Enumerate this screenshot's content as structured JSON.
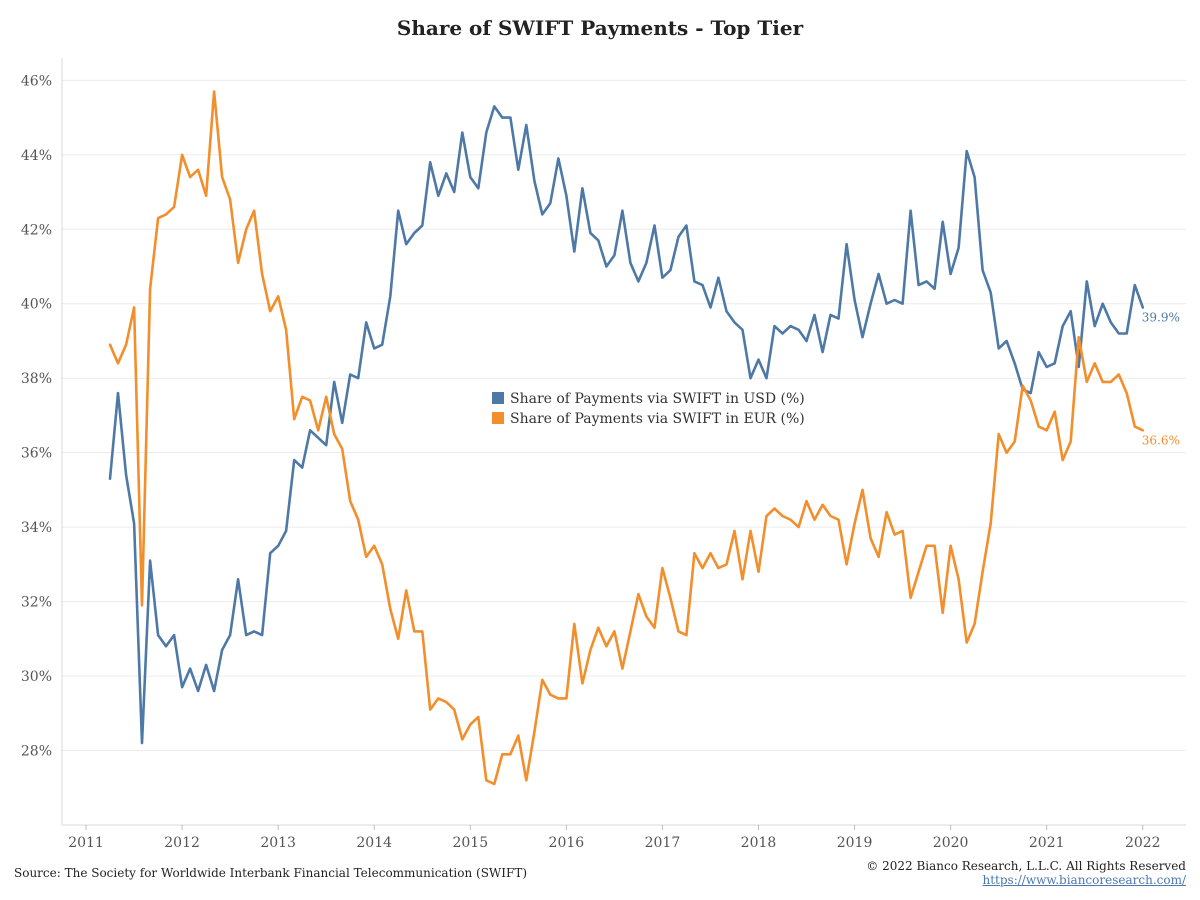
{
  "page": {
    "title": "Share of SWIFT Payments - Top Tier",
    "source": "Source: The Society for Worldwide Interbank Financial Telecommunication (SWIFT)",
    "copyright": "© 2022 Bianco Research, L.L.C. All Rights Reserved",
    "url": "https://www.biancoresearch.com/"
  },
  "chart_data": {
    "type": "line",
    "title": "Share of SWIFT Payments - Top Tier",
    "xlabel": "",
    "ylabel": "",
    "x_unit": "year",
    "xlim": [
      2010.75,
      2022.45
    ],
    "ylim": [
      26.0,
      46.6
    ],
    "x_ticks": [
      2011,
      2012,
      2013,
      2014,
      2015,
      2016,
      2017,
      2018,
      2019,
      2020,
      2021,
      2022
    ],
    "x_tick_labels": [
      "2011",
      "2012",
      "2013",
      "2014",
      "2015",
      "2016",
      "2017",
      "2018",
      "2019",
      "2020",
      "2021",
      "2022"
    ],
    "y_ticks": [
      28,
      30,
      32,
      34,
      36,
      38,
      40,
      42,
      44,
      46
    ],
    "y_tick_labels": [
      "28%",
      "30%",
      "32%",
      "34%",
      "36%",
      "38%",
      "40%",
      "42%",
      "44%",
      "46%"
    ],
    "grid": true,
    "legend_position": "center",
    "x": [
      2011.25,
      2011.333,
      2011.417,
      2011.5,
      2011.583,
      2011.667,
      2011.75,
      2011.833,
      2011.917,
      2012.0,
      2012.083,
      2012.167,
      2012.25,
      2012.333,
      2012.417,
      2012.5,
      2012.583,
      2012.667,
      2012.75,
      2012.833,
      2012.917,
      2013.0,
      2013.083,
      2013.167,
      2013.25,
      2013.333,
      2013.417,
      2013.5,
      2013.583,
      2013.667,
      2013.75,
      2013.833,
      2013.917,
      2014.0,
      2014.083,
      2014.167,
      2014.25,
      2014.333,
      2014.417,
      2014.5,
      2014.583,
      2014.667,
      2014.75,
      2014.833,
      2014.917,
      2015.0,
      2015.083,
      2015.167,
      2015.25,
      2015.333,
      2015.417,
      2015.5,
      2015.583,
      2015.667,
      2015.75,
      2015.833,
      2015.917,
      2016.0,
      2016.083,
      2016.167,
      2016.25,
      2016.333,
      2016.417,
      2016.5,
      2016.583,
      2016.667,
      2016.75,
      2016.833,
      2016.917,
      2017.0,
      2017.083,
      2017.167,
      2017.25,
      2017.333,
      2017.417,
      2017.5,
      2017.583,
      2017.667,
      2017.75,
      2017.833,
      2017.917,
      2018.0,
      2018.083,
      2018.167,
      2018.25,
      2018.333,
      2018.417,
      2018.5,
      2018.583,
      2018.667,
      2018.75,
      2018.833,
      2018.917,
      2019.0,
      2019.083,
      2019.167,
      2019.25,
      2019.333,
      2019.417,
      2019.5,
      2019.583,
      2019.667,
      2019.75,
      2019.833,
      2019.917,
      2020.0,
      2020.083,
      2020.167,
      2020.25,
      2020.333,
      2020.417,
      2020.5,
      2020.583,
      2020.667,
      2020.75,
      2020.833,
      2020.917,
      2021.0,
      2021.083,
      2021.167,
      2021.25,
      2021.333,
      2021.417,
      2021.5,
      2021.583,
      2021.667,
      2021.75,
      2021.833,
      2021.917,
      2022.0
    ],
    "series": [
      {
        "name": "Share of Payments via SWIFT in USD (%)",
        "color": "#4e79a7",
        "end_label": "39.9%",
        "values": [
          35.3,
          37.6,
          35.4,
          34.1,
          28.2,
          33.1,
          31.1,
          30.8,
          31.1,
          29.7,
          30.2,
          29.6,
          30.3,
          29.6,
          30.7,
          31.1,
          32.6,
          31.1,
          31.2,
          31.1,
          33.3,
          33.5,
          33.9,
          35.8,
          35.6,
          36.6,
          36.4,
          36.2,
          37.9,
          36.8,
          38.1,
          38.0,
          39.5,
          38.8,
          38.9,
          40.2,
          42.5,
          41.6,
          41.9,
          42.1,
          43.8,
          42.9,
          43.5,
          43.0,
          44.6,
          43.4,
          43.1,
          44.6,
          45.3,
          45.0,
          45.0,
          43.6,
          44.8,
          43.3,
          42.4,
          42.7,
          43.9,
          42.9,
          41.4,
          43.1,
          41.9,
          41.7,
          41.0,
          41.3,
          42.5,
          41.1,
          40.6,
          41.1,
          42.1,
          40.7,
          40.9,
          41.8,
          42.1,
          40.6,
          40.5,
          39.9,
          40.7,
          39.8,
          39.5,
          39.3,
          38.0,
          38.5,
          38.0,
          39.4,
          39.2,
          39.4,
          39.3,
          39.0,
          39.7,
          38.7,
          39.7,
          39.6,
          41.6,
          40.1,
          39.1,
          40.0,
          40.8,
          40.0,
          40.1,
          40.0,
          42.5,
          40.5,
          40.6,
          40.4,
          42.2,
          40.8,
          41.5,
          44.1,
          43.4,
          40.9,
          40.3,
          38.8,
          39.0,
          38.4,
          37.7,
          37.6,
          38.7,
          38.3,
          38.4,
          39.4,
          39.8,
          38.3,
          40.6,
          39.4,
          40.0,
          39.5,
          39.2,
          39.2,
          40.5,
          39.9
        ]
      },
      {
        "name": "Share of Payments via SWIFT in EUR (%)",
        "color": "#f28e2b",
        "end_label": "36.6%",
        "values": [
          38.9,
          38.4,
          38.9,
          39.9,
          31.9,
          40.4,
          42.3,
          42.4,
          42.6,
          44.0,
          43.4,
          43.6,
          42.9,
          45.7,
          43.4,
          42.8,
          41.1,
          42.0,
          42.5,
          40.8,
          39.8,
          40.2,
          39.3,
          36.9,
          37.5,
          37.4,
          36.6,
          37.5,
          36.5,
          36.1,
          34.7,
          34.2,
          33.2,
          33.5,
          33.0,
          31.8,
          31.0,
          32.3,
          31.2,
          31.2,
          29.1,
          29.4,
          29.3,
          29.1,
          28.3,
          28.7,
          28.9,
          27.2,
          27.1,
          27.9,
          27.9,
          28.4,
          27.2,
          28.5,
          29.9,
          29.5,
          29.4,
          29.4,
          31.4,
          29.8,
          30.7,
          31.3,
          30.8,
          31.2,
          30.2,
          31.2,
          32.2,
          31.6,
          31.3,
          32.9,
          32.1,
          31.2,
          31.1,
          33.3,
          32.9,
          33.3,
          32.9,
          33.0,
          33.9,
          32.6,
          33.9,
          32.8,
          34.3,
          34.5,
          34.3,
          34.2,
          34.0,
          34.7,
          34.2,
          34.6,
          34.3,
          34.2,
          33.0,
          34.1,
          35.0,
          33.7,
          33.2,
          34.4,
          33.8,
          33.9,
          32.1,
          32.8,
          33.5,
          33.5,
          31.7,
          33.5,
          32.6,
          30.9,
          31.4,
          32.8,
          34.1,
          36.5,
          36.0,
          36.3,
          37.8,
          37.4,
          36.7,
          36.6,
          37.1,
          35.8,
          36.3,
          39.1,
          37.9,
          38.4,
          37.9,
          37.9,
          38.1,
          37.6,
          36.7,
          36.6
        ]
      }
    ]
  }
}
